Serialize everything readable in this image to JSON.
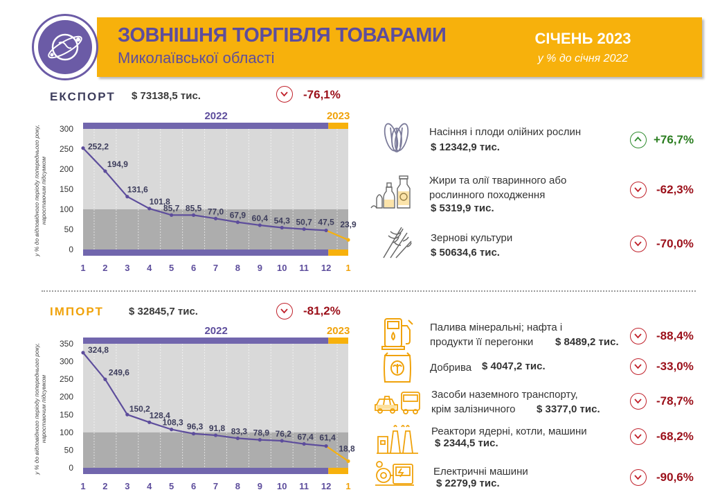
{
  "header": {
    "title": "ЗОВНІШНЯ ТОРГІВЛЯ ТОВАРАМИ",
    "subtitle": "Миколаївської області",
    "period": "СІЧЕНЬ 2023",
    "comparison": "у % до січня 2022"
  },
  "colors": {
    "accent_orange": "#f7b10c",
    "accent_purple": "#5d4d9c",
    "negative": "#9b0f19",
    "positive": "#2a7d1f"
  },
  "export": {
    "label": "ЕКСПОРТ",
    "total": "$ 73138,5 тис.",
    "change": "-76,1%",
    "change_direction": "down",
    "products": [
      {
        "name_line1": "Насіння і плоди олійних рослин",
        "name_line2": "",
        "value": "$ 12342,9 тис.",
        "change": "+76,7%",
        "direction": "up",
        "icon": "sunflower-seeds-icon"
      },
      {
        "name_line1": "Жири та олії тваринного або",
        "name_line2": "рослинного походження",
        "value": "$ 5319,9 тис.",
        "change": "-62,3%",
        "direction": "down",
        "icon": "oil-bottles-icon"
      },
      {
        "name_line1": "Зернові культури",
        "name_line2": "",
        "value": "$ 50634,6 тис.",
        "change": "-70,0%",
        "direction": "down",
        "icon": "wheat-icon"
      }
    ]
  },
  "import": {
    "label": "ІМПОРТ",
    "total": "$ 32845,7 тис.",
    "change": "-81,2%",
    "change_direction": "down",
    "products": [
      {
        "name_line1": "Палива мінеральні; нафта і",
        "name_line2": "продукти її перегонки",
        "value": "$ 8489,2 тис.",
        "change": "-88,4%",
        "direction": "down",
        "icon": "fuel-pump-icon"
      },
      {
        "name_line1": "Добрива",
        "name_line2": "",
        "value": "$ 4047,2 тис.",
        "change": "-33,0%",
        "direction": "down",
        "icon": "fertilizer-bag-icon"
      },
      {
        "name_line1": "Засоби наземного транспорту,",
        "name_line2": "крім залізничного",
        "value": "$ 3377,0 тис.",
        "change": "-78,7%",
        "direction": "down",
        "icon": "vehicles-icon"
      },
      {
        "name_line1": "Реактори ядерні, котли, машини",
        "name_line2": "",
        "value": "$ 2344,5 тис.",
        "change": "-68,2%",
        "direction": "down",
        "icon": "factory-icon"
      },
      {
        "name_line1": "Електричні машини",
        "name_line2": "",
        "value": "$ 2279,9 тис.",
        "change": "-90,6%",
        "direction": "down",
        "icon": "electric-machine-icon"
      }
    ]
  },
  "chart_data": [
    {
      "type": "line",
      "name": "export",
      "ylabel": "у % до відповідного періоду попереднього року, наростаючим підсумком",
      "year_labels": [
        "2022",
        "2023"
      ],
      "categories": [
        "1",
        "2",
        "3",
        "4",
        "5",
        "6",
        "7",
        "8",
        "9",
        "10",
        "11",
        "12",
        "1"
      ],
      "values": [
        252.2,
        194.9,
        131.6,
        101.8,
        85.7,
        85.5,
        77.0,
        67.9,
        60.4,
        54.3,
        50.7,
        47.5,
        23.9
      ],
      "value_labels": [
        "252,2",
        "194,9",
        "131,6",
        "101,8",
        "85,7",
        "85,5",
        "77,0",
        "67,9",
        "60,4",
        "54,3",
        "50,7",
        "47,5",
        "23,9"
      ],
      "yticks": [
        0,
        50,
        100,
        150,
        200,
        250,
        300
      ],
      "ylim": [
        0,
        300
      ],
      "background_band_below": 100,
      "grid": false
    },
    {
      "type": "line",
      "name": "import",
      "ylabel": "у % до відповідного періоду попереднього року, наростаючим підсумком",
      "year_labels": [
        "2022",
        "2023"
      ],
      "categories": [
        "1",
        "2",
        "3",
        "4",
        "5",
        "6",
        "7",
        "8",
        "9",
        "10",
        "11",
        "12",
        "1"
      ],
      "values": [
        324.8,
        249.6,
        150.2,
        128.4,
        108.3,
        96.3,
        91.8,
        83.3,
        78.9,
        76.2,
        67.4,
        61.4,
        18.8
      ],
      "value_labels": [
        "324,8",
        "249,6",
        "150,2",
        "128,4",
        "108,3",
        "96,3",
        "91,8",
        "83,3",
        "78,9",
        "76,2",
        "67,4",
        "61,4",
        "18,8"
      ],
      "yticks": [
        0,
        50,
        100,
        150,
        200,
        250,
        300,
        350
      ],
      "ylim": [
        0,
        350
      ],
      "background_band_below": 100,
      "grid": false
    }
  ]
}
